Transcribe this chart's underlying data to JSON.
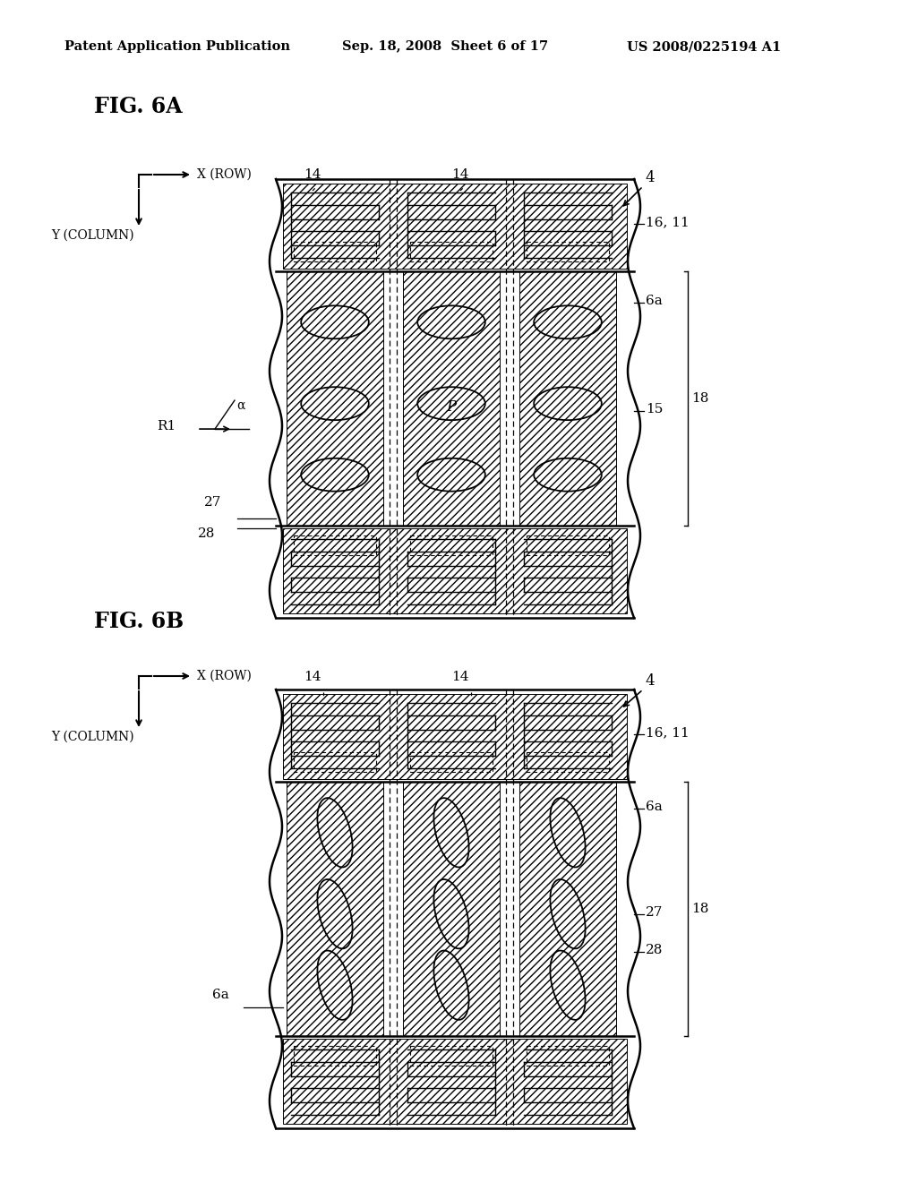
{
  "bg_color": "#ffffff",
  "header_text": "Patent Application Publication",
  "header_date": "Sep. 18, 2008  Sheet 6 of 17",
  "header_patent": "US 2008/0225194 A1",
  "fig6a_label": "FIG. 6A",
  "fig6b_label": "FIG. 6B"
}
